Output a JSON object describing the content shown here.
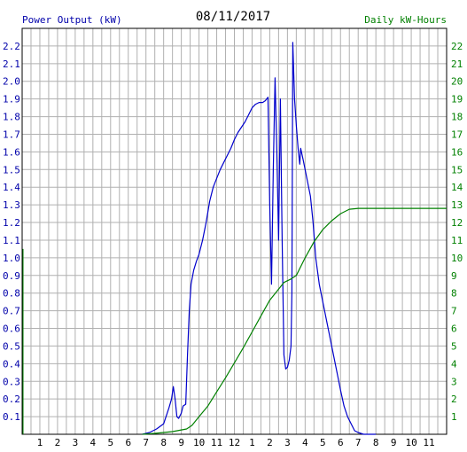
{
  "chart_data": {
    "type": "line",
    "date_label": "08/11/2017",
    "left_axis_label": "Power Output (kW)",
    "right_axis_label": "Daily kW-Hours",
    "x_tick_labels": [
      "1",
      "2",
      "3",
      "4",
      "5",
      "6",
      "7",
      "8",
      "9",
      "10",
      "11",
      "12",
      "1",
      "2",
      "3",
      "4",
      "5",
      "6",
      "7",
      "8",
      "9",
      "10",
      "11"
    ],
    "x_range_hours": [
      0,
      24
    ],
    "y_left_range": [
      0,
      2.3
    ],
    "y_left_ticks": [
      "0.1",
      "0.2",
      "0.3",
      "0.4",
      "0.5",
      "0.6",
      "0.7",
      "0.8",
      "0.9",
      "1.0",
      "1.1",
      "1.2",
      "1.3",
      "1.4",
      "1.5",
      "1.6",
      "1.7",
      "1.8",
      "1.9",
      "2.0",
      "2.1",
      "2.2"
    ],
    "y_right_range": [
      0,
      23
    ],
    "y_right_ticks": [
      "1",
      "2",
      "3",
      "4",
      "5",
      "6",
      "7",
      "8",
      "9",
      "10",
      "11",
      "12",
      "13",
      "14",
      "15",
      "16",
      "17",
      "18",
      "19",
      "20",
      "21",
      "22"
    ],
    "grid": true,
    "colors": {
      "power": "#0000cc",
      "energy": "#008000",
      "grid": "#b0b0b0",
      "left_axis_text": "#0000aa",
      "right_axis_text": "#008000",
      "x_axis_text": "#000000"
    },
    "series": [
      {
        "name": "Power Output (kW)",
        "axis": "left",
        "points": [
          [
            6.8,
            0.0
          ],
          [
            7.2,
            0.01
          ],
          [
            7.6,
            0.03
          ],
          [
            8.0,
            0.06
          ],
          [
            8.3,
            0.15
          ],
          [
            8.45,
            0.2
          ],
          [
            8.55,
            0.27
          ],
          [
            8.65,
            0.2
          ],
          [
            8.75,
            0.1
          ],
          [
            8.85,
            0.09
          ],
          [
            9.0,
            0.12
          ],
          [
            9.1,
            0.16
          ],
          [
            9.25,
            0.17
          ],
          [
            9.35,
            0.45
          ],
          [
            9.45,
            0.7
          ],
          [
            9.55,
            0.85
          ],
          [
            9.7,
            0.93
          ],
          [
            9.85,
            0.98
          ],
          [
            10.0,
            1.02
          ],
          [
            10.2,
            1.1
          ],
          [
            10.4,
            1.2
          ],
          [
            10.6,
            1.32
          ],
          [
            10.8,
            1.4
          ],
          [
            11.0,
            1.45
          ],
          [
            11.2,
            1.5
          ],
          [
            11.4,
            1.54
          ],
          [
            11.6,
            1.58
          ],
          [
            11.8,
            1.62
          ],
          [
            12.0,
            1.67
          ],
          [
            12.2,
            1.71
          ],
          [
            12.4,
            1.74
          ],
          [
            12.6,
            1.77
          ],
          [
            12.8,
            1.81
          ],
          [
            13.0,
            1.85
          ],
          [
            13.2,
            1.87
          ],
          [
            13.4,
            1.88
          ],
          [
            13.6,
            1.88
          ],
          [
            13.75,
            1.89
          ],
          [
            13.9,
            1.91
          ],
          [
            14.0,
            1.3
          ],
          [
            14.1,
            0.85
          ],
          [
            14.2,
            1.5
          ],
          [
            14.3,
            2.02
          ],
          [
            14.4,
            1.6
          ],
          [
            14.5,
            1.1
          ],
          [
            14.6,
            1.9
          ],
          [
            14.7,
            1.1
          ],
          [
            14.8,
            0.45
          ],
          [
            14.9,
            0.37
          ],
          [
            15.0,
            0.38
          ],
          [
            15.1,
            0.42
          ],
          [
            15.2,
            0.5
          ],
          [
            15.25,
            0.8
          ],
          [
            15.3,
            2.22
          ],
          [
            15.4,
            1.9
          ],
          [
            15.5,
            1.75
          ],
          [
            15.6,
            1.62
          ],
          [
            15.7,
            1.53
          ],
          [
            15.75,
            1.62
          ],
          [
            15.9,
            1.55
          ],
          [
            16.1,
            1.45
          ],
          [
            16.3,
            1.35
          ],
          [
            16.45,
            1.2
          ],
          [
            16.6,
            1.0
          ],
          [
            16.8,
            0.85
          ],
          [
            17.0,
            0.75
          ],
          [
            17.2,
            0.65
          ],
          [
            17.4,
            0.55
          ],
          [
            17.6,
            0.45
          ],
          [
            17.8,
            0.35
          ],
          [
            18.0,
            0.25
          ],
          [
            18.2,
            0.16
          ],
          [
            18.4,
            0.1
          ],
          [
            18.6,
            0.06
          ],
          [
            18.8,
            0.02
          ],
          [
            19.0,
            0.01
          ],
          [
            19.3,
            0.0
          ],
          [
            20.0,
            0.0
          ]
        ]
      },
      {
        "name": "Daily kW-Hours",
        "axis": "right",
        "points": [
          [
            6.8,
            0.0
          ],
          [
            7.5,
            0.05
          ],
          [
            8.5,
            0.15
          ],
          [
            9.3,
            0.3
          ],
          [
            9.6,
            0.5
          ],
          [
            10.0,
            1.0
          ],
          [
            10.5,
            1.6
          ],
          [
            11.0,
            2.4
          ],
          [
            11.5,
            3.2
          ],
          [
            12.0,
            4.05
          ],
          [
            12.5,
            4.9
          ],
          [
            13.0,
            5.8
          ],
          [
            13.5,
            6.7
          ],
          [
            14.0,
            7.6
          ],
          [
            14.4,
            8.1
          ],
          [
            14.8,
            8.6
          ],
          [
            15.2,
            8.8
          ],
          [
            15.5,
            9.0
          ],
          [
            16.0,
            10.0
          ],
          [
            16.5,
            10.9
          ],
          [
            17.0,
            11.6
          ],
          [
            17.5,
            12.1
          ],
          [
            18.0,
            12.5
          ],
          [
            18.5,
            12.75
          ],
          [
            19.0,
            12.8
          ],
          [
            19.5,
            12.8
          ],
          [
            20.0,
            12.8
          ],
          [
            21.0,
            12.8
          ],
          [
            22.0,
            12.8
          ],
          [
            23.0,
            12.8
          ],
          [
            24.0,
            12.8
          ]
        ]
      }
    ]
  }
}
